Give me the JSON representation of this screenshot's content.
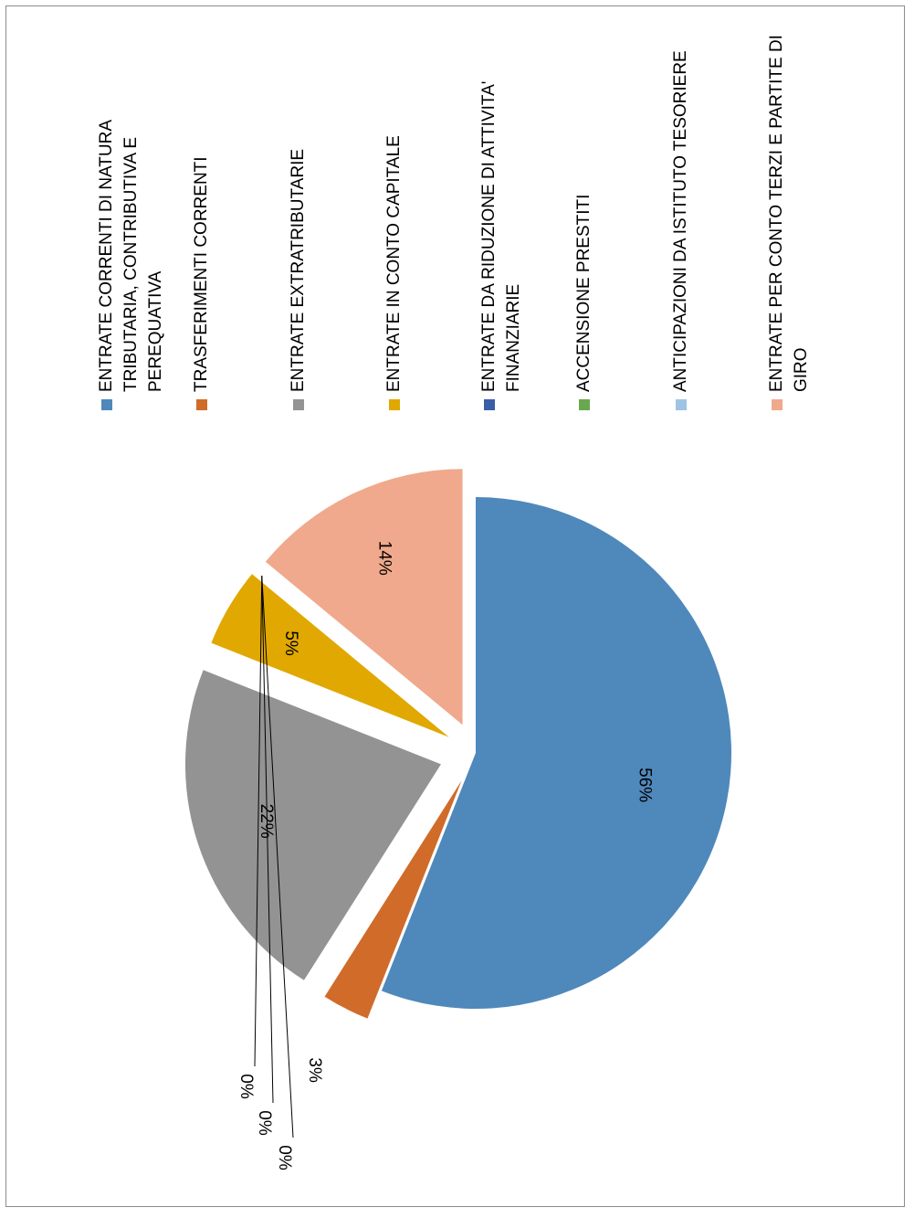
{
  "chart_data": {
    "type": "pie",
    "title": "",
    "categories": [
      "ENTRATE CORRENTI DI NATURA TRIBUTARIA, CONTRIBUTIVA E PEREQUATIVA",
      "TRASFERIMENTI CORRENTI",
      "ENTRATE EXTRATRIBUTARIE",
      "ENTRATE IN CONTO CAPITALE",
      "ENTRATE DA RIDUZIONE DI ATTIVITA' FINANZIARIE",
      "ACCENSIONE PRESTITI",
      "ANTICIPAZIONI DA ISTITUTO TESORIERE",
      "ENTRATE PER CONTO TERZI E PARTITE DI GIRO"
    ],
    "legend_lines": [
      [
        "ENTRATE CORRENTI DI NATURA",
        "TRIBUTARIA, CONTRIBUTIVA E",
        "PEREQUATIVA"
      ],
      [
        "TRASFERIMENTI CORRENTI"
      ],
      [
        "ENTRATE EXTRATRIBUTARIE"
      ],
      [
        "ENTRATE IN CONTO CAPITALE"
      ],
      [
        "ENTRATE DA RIDUZIONE DI ATTIVITA'",
        "FINANZIARIE"
      ],
      [
        "ACCENSIONE PRESTITI"
      ],
      [
        "ANTICIPAZIONI DA ISTITUTO TESORIERE"
      ],
      [
        "ENTRATE PER CONTO TERZI E PARTITE DI",
        "GIRO"
      ]
    ],
    "values": [
      56,
      3,
      22,
      5,
      0,
      0,
      0,
      14
    ],
    "labels": [
      "56%",
      "3%",
      "22%",
      "5%",
      "0%",
      "0%",
      "0%",
      "14%"
    ],
    "colors": [
      "#4f88bb",
      "#d06b29",
      "#939393",
      "#e0a800",
      "#3a5fa8",
      "#6aa84f",
      "#9ec3e4",
      "#f0a98c"
    ],
    "exploded": true,
    "legend_position": "right",
    "orientation": "rotated 90 degrees clockwise"
  }
}
